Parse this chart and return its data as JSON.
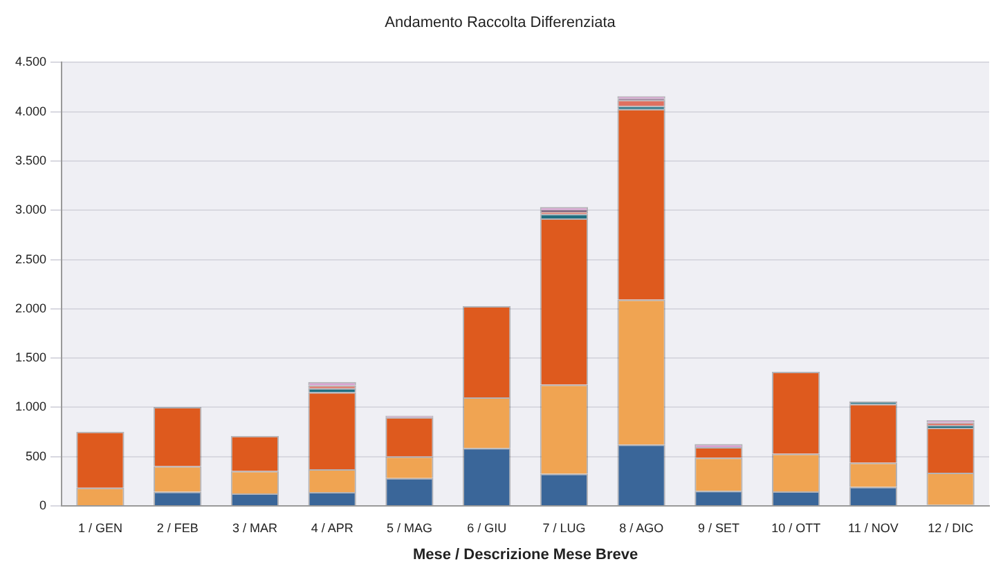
{
  "chart_data": {
    "type": "bar",
    "stacked": true,
    "title": "Andamento Raccolta Differenziata",
    "xlabel": "Mese / Descrizione Mese Breve",
    "categories": [
      "1 / GEN",
      "2 / FEB",
      "3 / MAR",
      "4 / APR",
      "5 / MAG",
      "6 / GIU",
      "7 / LUG",
      "8 / AGO",
      "9 / SET",
      "10 / OTT",
      "11 / NOV",
      "12 / DIC"
    ],
    "series": [
      {
        "color": "#3a6699",
        "values": [
          null,
          143,
          126,
          140,
          282,
          587,
          327,
          623,
          153,
          148,
          193,
          10
        ]
      },
      {
        "color": "#f0a452",
        "values": [
          184,
          260,
          228,
          232,
          220,
          514,
          904,
          1471,
          336,
          381,
          246,
          326
        ]
      },
      {
        "color": "#de5a1e",
        "values": [
          568,
          600,
          357,
          782,
          397,
          926,
          1687,
          1933,
          107,
          832,
          595,
          456
        ]
      },
      {
        "color": "#1f6e80",
        "values": [
          null,
          null,
          null,
          40,
          null,
          null,
          45,
          32,
          null,
          null,
          26,
          28
        ]
      },
      {
        "color": "#e07060",
        "values": [
          null,
          null,
          null,
          30,
          null,
          null,
          25,
          62,
          null,
          null,
          null,
          25
        ]
      },
      {
        "color": "#5a2050",
        "values": [
          null,
          null,
          null,
          null,
          null,
          null,
          15,
          14,
          null,
          null,
          null,
          null
        ]
      },
      {
        "color": "#d9a0d0",
        "values": [
          null,
          null,
          null,
          33,
          16,
          null,
          30,
          22,
          31,
          null,
          null,
          25
        ]
      }
    ],
    "ylim": [
      0,
      4500
    ],
    "yticks": [
      0,
      {
        "value": 500,
        "label": "500"
      },
      {
        "value": 1000,
        "label": "1.000"
      },
      {
        "value": 1500,
        "label": "1.500"
      },
      {
        "value": 2000,
        "label": "2.000"
      },
      {
        "value": 2500,
        "label": "2.500"
      },
      {
        "value": 3000,
        "label": "3.000"
      },
      {
        "value": 3500,
        "label": "3.500"
      },
      {
        "value": 4000,
        "label": "4.000"
      },
      {
        "value": 4500,
        "label": "4.500"
      }
    ],
    "grid": "y",
    "legend": false
  }
}
